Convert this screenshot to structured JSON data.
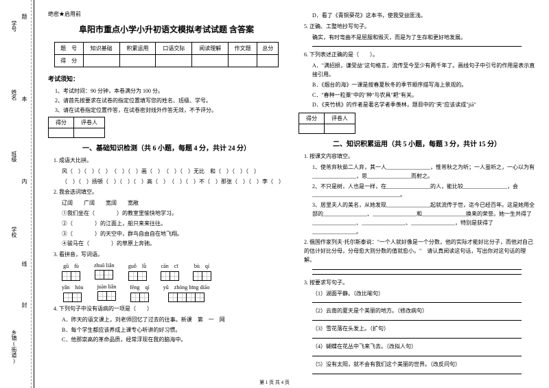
{
  "margin": {
    "labels": [
      "学号",
      "姓名",
      "班级",
      "学校",
      "乡镇(街道)"
    ],
    "marks": [
      "题",
      "本",
      "内",
      "线",
      "封"
    ]
  },
  "header_mark": "绝密★启用前",
  "title": "阜阳市重点小学小升初语文模拟考试试题 含答案",
  "score_table": {
    "row1": [
      "题　号",
      "知识基础",
      "积累运用",
      "口语交际",
      "阅读理解",
      "作文题",
      "总分"
    ],
    "row2": [
      "得　分",
      "",
      "",
      "",
      "",
      "",
      ""
    ]
  },
  "notice_title": "考试须知：",
  "notices": [
    "1、考试时间：90 分钟，本卷满分为 100 分。",
    "2、请首先按要求在试卷的指定位置填写您的姓名、班级、学号。",
    "3、请在试卷指定位置作答，在试卷密封线外作答无效，不予评分。"
  ],
  "mini_headers": [
    "得分",
    "评卷人"
  ],
  "section1": {
    "title": "一、基础知识检测（共 6 小题，每题 4 分，共计 24 分）",
    "q1_title": "1. 成语大比拼。",
    "q1_lines": [
      "风（　）（　）（　）　（　）（　）画（　）　（　）（　）无比　和（　）（　）（　）",
      "（　）（　）扬顿（　）（　）（　）高（　）　（　）（　）不（　）那张（　）（　）李（　）"
    ],
    "q2_title": "2. 我会选词填空。",
    "q2_words": "辽阔　　广阔　　宽阔　　宽敞",
    "q2_items": [
      "①我们坐在（　　　　）的教室里愉快地学习。",
      "②（　　　　）的江面上，船只来来往往。",
      "③（　　　　）的天空中，群鸟自由自在地飞翔。",
      "④骏马在（　　　　）的草原上奔驰。"
    ],
    "q3_title": "3. 看拼音，写词语。",
    "pinyin_row1": [
      "gū　fù",
      "zhuō liǎn",
      "guǒ　lǜ",
      "cān　cī",
      "bù　qí"
    ],
    "pinyin_row2": [
      "yǎn　hóu",
      "juàn liǎn",
      "fēng　qí",
      "yǔ　zhōng bīng diāo"
    ],
    "cells_row1": [
      2,
      2,
      2,
      2,
      2
    ],
    "cells_row2": [
      2,
      2,
      2,
      4
    ],
    "q4_title": "4. 下列句子中没有语病的一项是（　　）",
    "q4_opts": [
      "A．昨天的语文课上，刘老师回忆了过去的往事。新课　第　一　网",
      "B．每个学生都应该养成上课专心听讲的好习惯。",
      "C．他那崇高的革命品质，经常浮现在我的脑海中。"
    ]
  },
  "col2": {
    "q4_more": [
      "D．看了《青铜葵花》这本书，使我受益匪浅。"
    ],
    "q5_title": "5. 正确、工整地抄写句子。",
    "q5_text": "确实，有时弯曲不是屈服和毁灭，而是为了生存和更好地发展。",
    "q6_title": "6. 下列表述正确的是（　　）。",
    "q6_opts": [
      "A．\"满招损，谦受益\"这句格言，流传至今至少有两千年了。画线句子中引号的作用是表示直接引用。",
      "B．《烟台的海》一课是按春夏秋冬的季节顺序描写海上景观的。",
      "C．\"春种一粒粟\"中的\"种\"与农具\"耙\"有关。",
      "D．《夹竹桃》的作者是著名学者季羡林，题目中的\"夹\"应该读成\"jiā\""
    ],
    "section2_title": "二、知识积累运用（共 5 小题，每题 3 分，共计 15 分）",
    "s2_q1": "1. 按课文内容填空。",
    "s2_q1_items": [
      "1、使芾弃秋茹二人弃，其一人________________，惟芾秋之为听；一人虽听之，一心以为有________________，思________________而射之。",
      "2、不只是树，人也是一样，在________________的人，能比较________________，会________________________________。",
      "3、居里夫人的美名，从她发现________________起就流传于世，迄今已经百年。这是她用全部的________________、________________和________________换来的荣誉。她一生共得了________________、________________、________________，特别是获得了________________。"
    ],
    "s2_q2": "2. 俄国作家列夫·托尔斯泰说：\"一个人就好像是一个分数，他的实际才能好比分子，而他对自己的估计好比分母，分母愈大则分数的值就愈小。\"　请认真阅读这句话，写出你对这句话的理解。",
    "s2_q3": "3. 按要求写句子。",
    "s2_q3_items": [
      "（1）湖面平静。（改比喻句）",
      "（2）云南的夏天是个美丽的地方。（修改病句）",
      "（3）雪花落在头发上。（扩句）",
      "（4）蝴蝶在花丛中飞来飞去。（改拟人句）",
      "（5）没有太阳，就不会有我们这个美丽的世界。（改反问句）"
    ]
  },
  "footer": "第 1 页 共 4 页"
}
